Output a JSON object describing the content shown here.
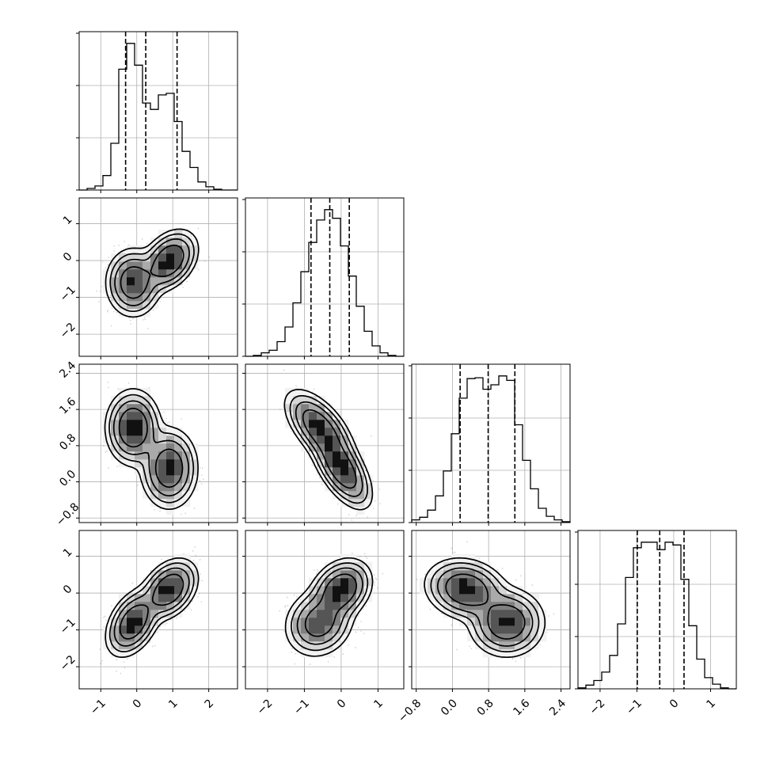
{
  "chart_data": {
    "type": "corner",
    "grid": true,
    "parameters": 4,
    "axes": [
      {
        "range": [
          -1.6,
          2.8
        ],
        "ticks": [
          -1,
          0,
          1,
          2
        ],
        "tick_labels": [
          "−1",
          "0",
          "1",
          "2"
        ]
      },
      {
        "range": [
          -2.6,
          1.7
        ],
        "ticks": [
          -2,
          -1,
          0,
          1
        ],
        "tick_labels": [
          "−2",
          "−1",
          "0",
          "1"
        ]
      },
      {
        "range": [
          -0.9,
          2.6
        ],
        "ticks": [
          -0.8,
          0.0,
          0.8,
          1.6,
          2.4
        ],
        "tick_labels": [
          "−0.8",
          "0.0",
          "0.8",
          "1.6",
          "2.4"
        ]
      },
      {
        "range": [
          -2.6,
          1.7
        ],
        "ticks": [
          -2,
          -1,
          0,
          1
        ],
        "tick_labels": [
          "−2",
          "−1",
          "0",
          "1"
        ]
      }
    ],
    "quantiles": [
      [
        -0.31,
        0.25,
        1.12
      ],
      [
        -0.82,
        -0.31,
        0.22
      ],
      [
        0.17,
        0.79,
        1.38
      ],
      [
        -0.99,
        -0.38,
        0.28
      ]
    ],
    "histograms": [
      {
        "bin_edges": [
          -1.6,
          -1.38,
          -1.16,
          -0.94,
          -0.72,
          -0.5,
          -0.28,
          -0.06,
          0.16,
          0.38,
          0.6,
          0.82,
          1.04,
          1.26,
          1.48,
          1.7,
          1.92,
          2.14,
          2.36,
          2.58,
          2.8
        ],
        "counts": [
          0,
          2,
          5,
          18,
          58,
          150,
          182,
          155,
          108,
          100,
          118,
          120,
          85,
          48,
          28,
          10,
          4,
          1,
          0,
          0
        ]
      },
      {
        "bin_edges": [
          -2.6,
          -2.385,
          -2.17,
          -1.955,
          -1.74,
          -1.525,
          -1.31,
          -1.095,
          -0.88,
          -0.665,
          -0.45,
          -0.235,
          -0.02,
          0.195,
          0.41,
          0.625,
          0.84,
          1.055,
          1.27,
          1.485,
          1.7
        ],
        "counts": [
          0,
          1,
          4,
          7,
          17,
          34,
          62,
          98,
          132,
          158,
          170,
          160,
          128,
          93,
          58,
          29,
          12,
          4,
          1,
          0
        ]
      },
      {
        "bin_edges": [
          -0.9,
          -0.725,
          -0.55,
          -0.375,
          -0.2,
          -0.025,
          0.15,
          0.325,
          0.5,
          0.675,
          0.85,
          1.025,
          1.2,
          1.375,
          1.55,
          1.725,
          1.9,
          2.075,
          2.25,
          2.425,
          2.6
        ],
        "counts": [
          3,
          6,
          14,
          30,
          58,
          100,
          140,
          162,
          163,
          150,
          155,
          165,
          160,
          110,
          70,
          38,
          16,
          7,
          3,
          1
        ]
      },
      {
        "bin_edges": [
          -2.6,
          -2.385,
          -2.17,
          -1.955,
          -1.74,
          -1.525,
          -1.31,
          -1.095,
          -0.88,
          -0.665,
          -0.45,
          -0.235,
          -0.02,
          0.195,
          0.41,
          0.625,
          0.84,
          1.055,
          1.27,
          1.485,
          1.7
        ],
        "counts": [
          1,
          4,
          9,
          18,
          36,
          70,
          120,
          152,
          158,
          158,
          150,
          158,
          155,
          118,
          68,
          32,
          12,
          5,
          1,
          0
        ]
      }
    ],
    "mixture": {
      "weights": [
        0.5,
        0.5
      ],
      "means": [
        [
          -0.1,
          -0.6,
          1.2,
          -0.8
        ],
        [
          0.9,
          0.0,
          0.3,
          0.1
        ]
      ],
      "covariances": [
        [
          [
            0.1,
            0.0,
            0.0,
            0.05
          ],
          [
            0.0,
            0.15,
            -0.08,
            0.02
          ],
          [
            0.0,
            -0.08,
            0.12,
            0.0
          ],
          [
            0.05,
            0.02,
            0.0,
            0.15
          ]
        ],
        [
          [
            0.11,
            0.04,
            0.0,
            0.04
          ],
          [
            0.04,
            0.12,
            -0.08,
            0.03
          ],
          [
            0.0,
            -0.08,
            0.14,
            -0.02
          ],
          [
            0.04,
            0.03,
            -0.02,
            0.12
          ]
        ]
      ]
    }
  }
}
